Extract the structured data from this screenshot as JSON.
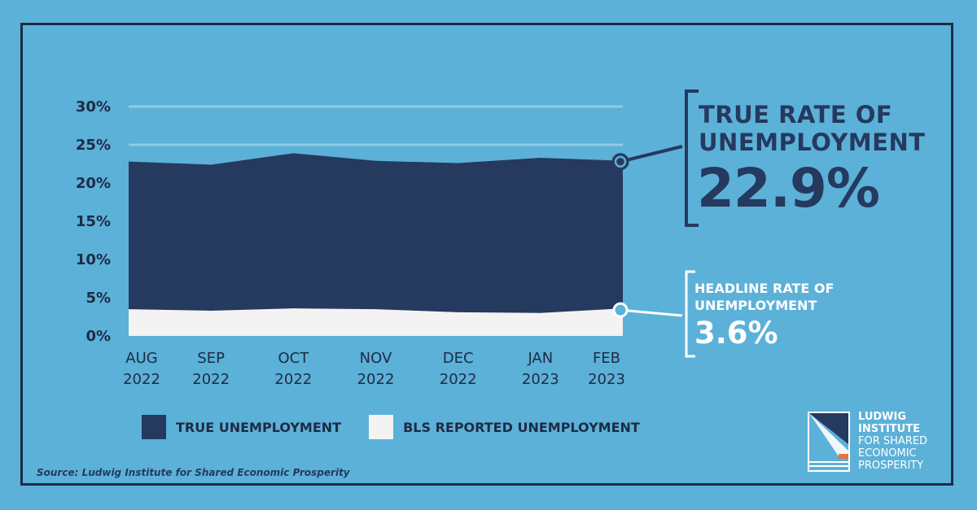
{
  "chart_data": {
    "type": "area",
    "x": [
      "AUG 2022",
      "SEP 2022",
      "OCT 2022",
      "NOV 2022",
      "DEC 2022",
      "JAN 2023",
      "FEB 2023"
    ],
    "x_ticks": [
      {
        "month": "AUG",
        "year": "2022"
      },
      {
        "month": "SEP",
        "year": "2022"
      },
      {
        "month": "OCT",
        "year": "2022"
      },
      {
        "month": "NOV",
        "year": "2022"
      },
      {
        "month": "DEC",
        "year": "2022"
      },
      {
        "month": "JAN",
        "year": "2023"
      },
      {
        "month": "FEB",
        "year": "2023"
      }
    ],
    "series": [
      {
        "name": "TRUE UNEMPLOYMENT",
        "color": "#26395E",
        "values": [
          22.8,
          22.4,
          23.9,
          22.9,
          22.6,
          23.3,
          22.9
        ]
      },
      {
        "name": "BLS REPORTED UNEMPLOYMENT",
        "color": "#F3F3F3",
        "values": [
          3.5,
          3.3,
          3.6,
          3.5,
          3.1,
          3.0,
          3.6
        ]
      }
    ],
    "y_ticks": [
      "0%",
      "5%",
      "10%",
      "15%",
      "20%",
      "25%",
      "30%"
    ],
    "ylim": [
      0,
      30
    ],
    "grid": true
  },
  "callouts": {
    "true_title_line1": "TRUE RATE OF",
    "true_title_line2": "UNEMPLOYMENT",
    "true_value": "22.9%",
    "headline_title_line1": "HEADLINE RATE OF",
    "headline_title_line2": "UNEMPLOYMENT",
    "headline_value": "3.6%"
  },
  "legend": {
    "true_label": "TRUE UNEMPLOYMENT",
    "bls_label": "BLS REPORTED UNEMPLOYMENT"
  },
  "source": "Source: Ludwig Institute for Shared Economic Prosperity",
  "logo": {
    "line1": "LUDWIG",
    "line2": "INSTITUTE",
    "line3": "FOR SHARED",
    "line4": "ECONOMIC",
    "line5": "PROSPERITY"
  },
  "colors": {
    "background": "#5BB1D8",
    "navy": "#26395E",
    "light": "#F3F3F3",
    "gridline": "#8FCBE5",
    "accent_orange": "#E8733A"
  }
}
